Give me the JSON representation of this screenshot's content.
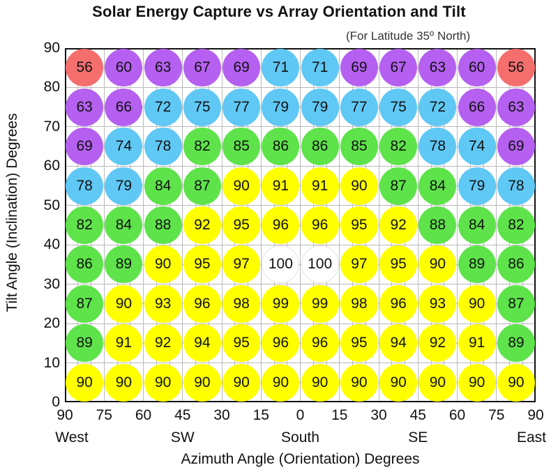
{
  "chart_data": {
    "type": "heatmap",
    "title": "Solar Energy Capture vs Array Orientation and Tilt",
    "subtitle": "(For Latitude 35º North)",
    "xlabel": "Azimuth Angle (Orientation) Degrees",
    "ylabel": "Tilt Angle (Inclination) Degrees",
    "x_tick_labels": [
      "90",
      "75",
      "60",
      "45",
      "30",
      "15",
      "0",
      "15",
      "30",
      "45",
      "60",
      "75",
      "90"
    ],
    "x_direction_labels": [
      {
        "label": "West",
        "at": 0
      },
      {
        "label": "SW",
        "at": 3
      },
      {
        "label": "South",
        "at": 6
      },
      {
        "label": "SE",
        "at": 9
      },
      {
        "label": "East",
        "at": 12
      }
    ],
    "y_ticks": [
      0,
      10,
      20,
      30,
      40,
      50,
      60,
      70,
      80,
      90
    ],
    "ylim": [
      0,
      90
    ],
    "rows": [
      {
        "tilt": 85,
        "values": [
          56,
          60,
          63,
          67,
          69,
          71,
          71,
          69,
          67,
          63,
          60,
          56
        ]
      },
      {
        "tilt": 75,
        "values": [
          63,
          66,
          72,
          75,
          77,
          79,
          79,
          77,
          75,
          72,
          66,
          63
        ]
      },
      {
        "tilt": 65,
        "values": [
          69,
          74,
          78,
          82,
          85,
          86,
          86,
          85,
          82,
          78,
          74,
          69
        ]
      },
      {
        "tilt": 55,
        "values": [
          78,
          79,
          84,
          87,
          90,
          91,
          91,
          90,
          87,
          84,
          79,
          78
        ]
      },
      {
        "tilt": 45,
        "values": [
          82,
          84,
          88,
          92,
          95,
          96,
          96,
          95,
          92,
          88,
          84,
          82
        ]
      },
      {
        "tilt": 35,
        "values": [
          86,
          89,
          90,
          95,
          97,
          100,
          100,
          97,
          95,
          90,
          89,
          86
        ]
      },
      {
        "tilt": 25,
        "values": [
          87,
          90,
          93,
          96,
          98,
          99,
          99,
          98,
          96,
          93,
          90,
          87
        ]
      },
      {
        "tilt": 15,
        "values": [
          89,
          91,
          92,
          94,
          95,
          96,
          96,
          95,
          94,
          92,
          91,
          89
        ]
      },
      {
        "tilt": 5,
        "values": [
          90,
          90,
          90,
          90,
          90,
          90,
          90,
          90,
          90,
          90,
          90,
          90
        ]
      }
    ],
    "color_scale": [
      {
        "min": 100,
        "color": "#ffffff"
      },
      {
        "min": 90,
        "color": "#ffff00"
      },
      {
        "min": 80,
        "color": "#5ee34a"
      },
      {
        "min": 71,
        "color": "#5fc8f5"
      },
      {
        "min": 60,
        "color": "#b560f0"
      },
      {
        "min": 0,
        "color": "#f46e6e"
      }
    ],
    "color_exceptions": [
      {
        "value": 90,
        "row": 3,
        "color": "#ffff00"
      },
      {
        "value": 87,
        "row": 3,
        "col": 8,
        "color": "#5ee34a"
      }
    ],
    "grid": true
  }
}
